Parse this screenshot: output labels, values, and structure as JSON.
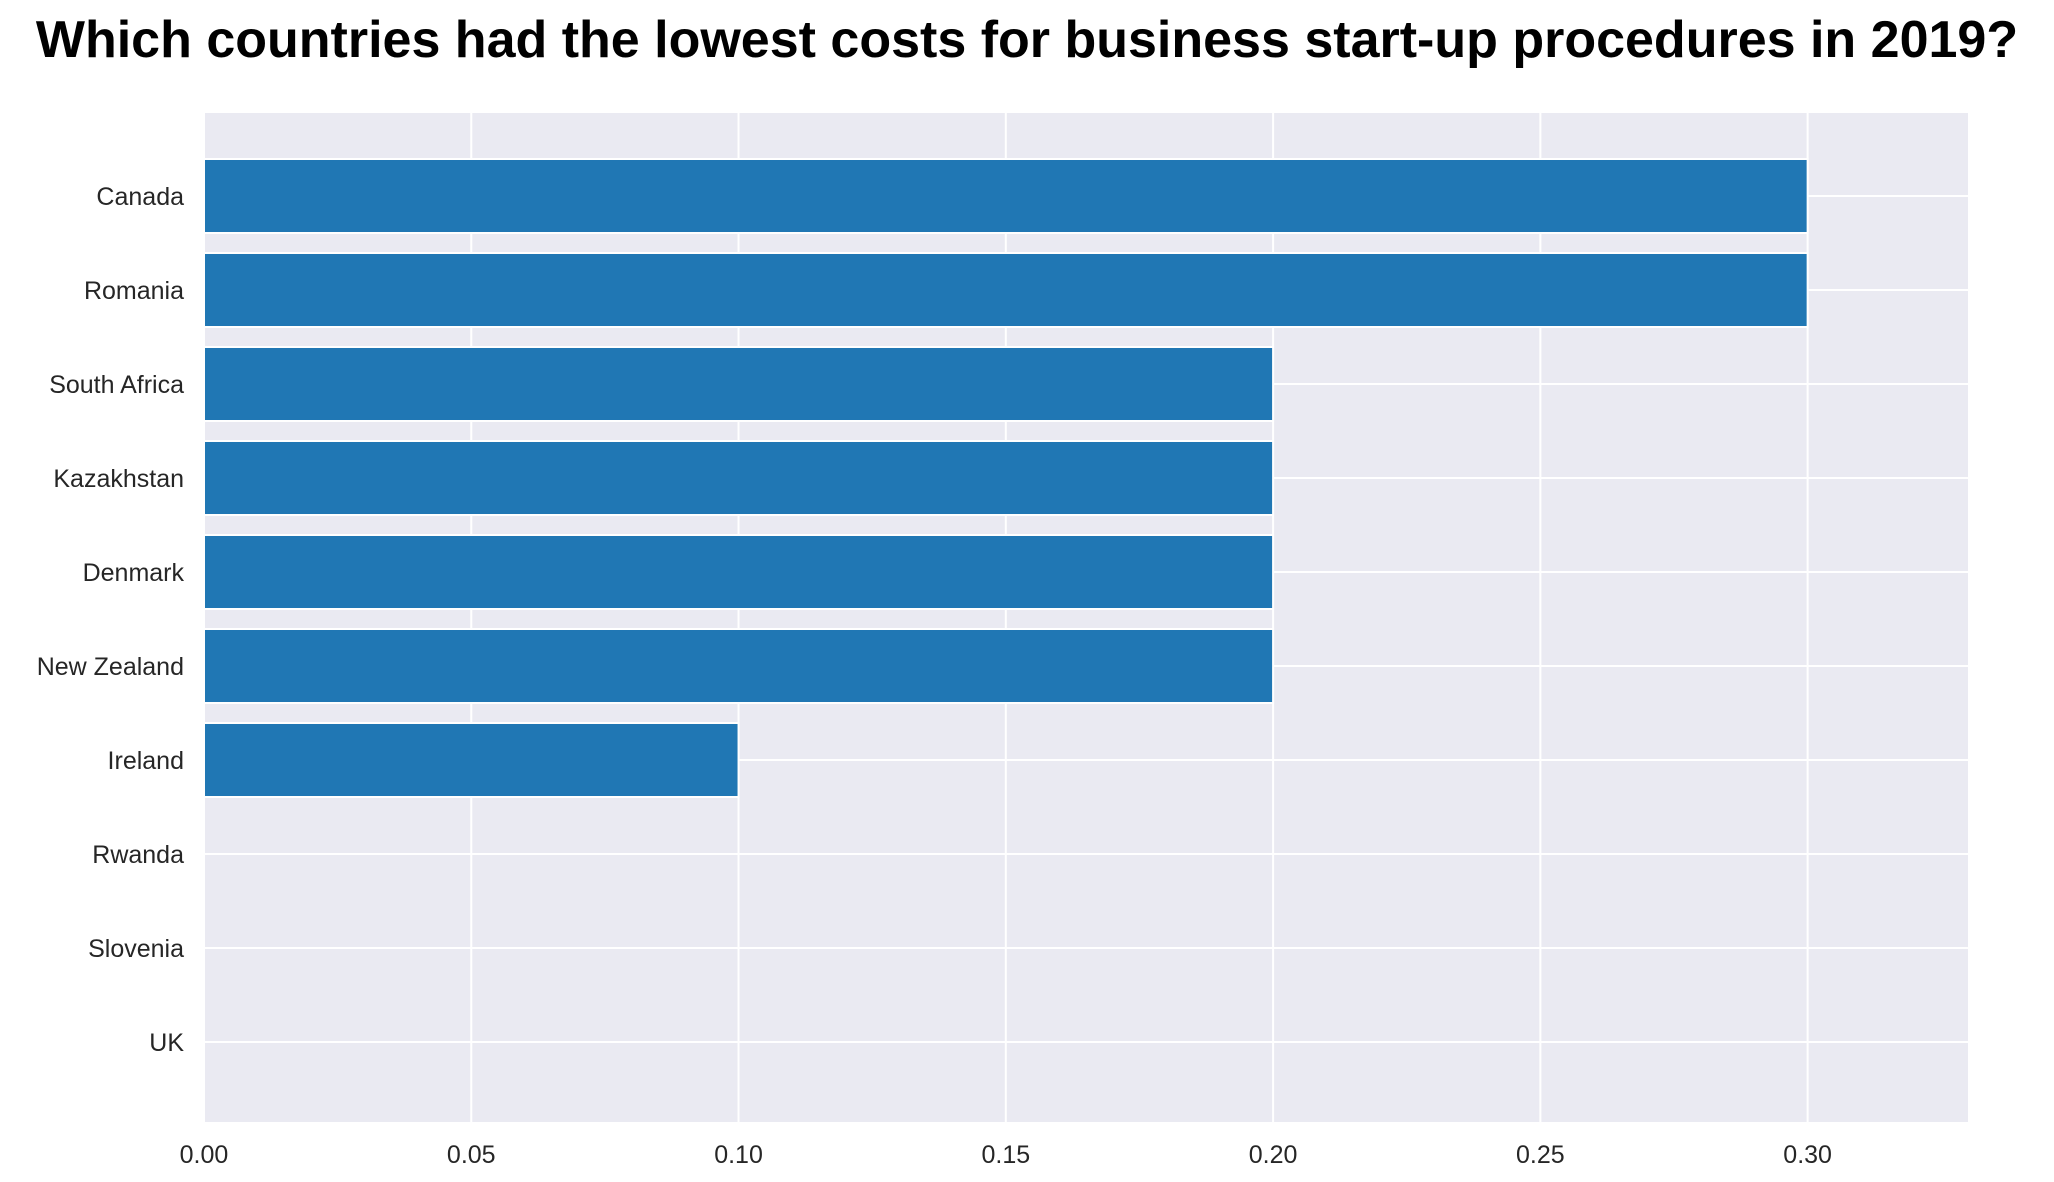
{
  "chart_data": {
    "type": "bar",
    "orientation": "horizontal",
    "title": "Which countries had the lowest costs for business start-up procedures in 2019?",
    "xlabel": "",
    "ylabel": "",
    "categories": [
      "Canada",
      "Romania",
      "South Africa",
      "Kazakhstan",
      "Denmark",
      "New Zealand",
      "Ireland",
      "Rwanda",
      "Slovenia",
      "UK"
    ],
    "values": [
      0.3,
      0.3,
      0.2,
      0.2,
      0.2,
      0.2,
      0.1,
      0.0,
      0.0,
      0.0
    ],
    "xlim": [
      0,
      0.33
    ],
    "xticks": [
      "0.00",
      "0.05",
      "0.10",
      "0.15",
      "0.20",
      "0.25",
      "0.30"
    ],
    "grid": true,
    "colors": {
      "bar": "#2077b4",
      "plot_background": "#eaeaf2",
      "grid": "#ffffff"
    }
  }
}
